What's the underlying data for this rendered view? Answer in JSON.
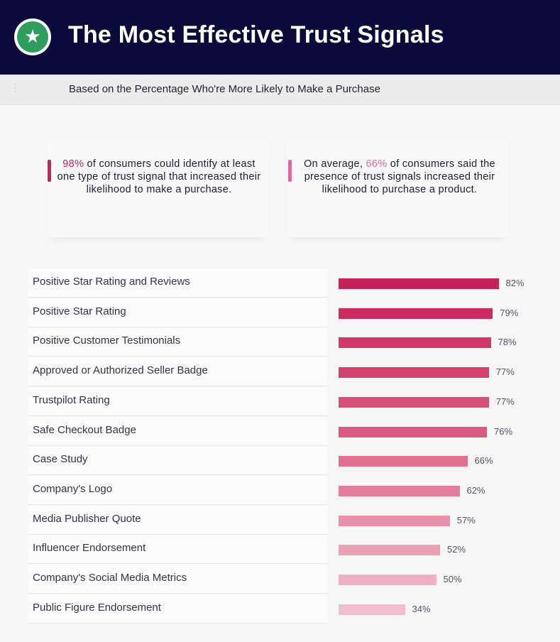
{
  "header": {
    "title": "The Most Effective Trust Signals",
    "icon": "star-icon",
    "icon_glyph": "★",
    "background": "#0b0b3b",
    "badge_color": "#2e9e5e"
  },
  "subtitle": "Based on the Percentage Who're More Likely to Make a Purchase",
  "stats": [
    {
      "highlight": "98%",
      "text": " of consumers could identify at least one type of trust signal that increased their likelihood to make a purchase.",
      "accent_color": "#c8245a"
    },
    {
      "prefix": "On average, ",
      "highlight": "66%",
      "text": " of consumers said the presence of trust signals increased their likelihood to purchase a product.",
      "accent_color": "#e06a98"
    }
  ],
  "chart_data": {
    "type": "bar",
    "orientation": "horizontal",
    "categories": [
      "Positive Star Rating and Reviews",
      "Positive Star Rating",
      "Positive Customer Testimonials",
      "Approved or Authorized Seller Badge",
      "Trustpilot Rating",
      "Safe Checkout Badge",
      "Case Study",
      "Company's Logo",
      "Media Publisher Quote",
      "Influencer Endorsement",
      "Company's Social Media Metrics",
      "Public Figure Endorsement"
    ],
    "values": [
      82,
      79,
      78,
      77,
      77,
      76,
      66,
      62,
      57,
      52,
      50,
      34
    ],
    "value_labels": [
      "82%",
      "79%",
      "78%",
      "77%",
      "77%",
      "76%",
      "66%",
      "62%",
      "57%",
      "52%",
      "50%",
      "34%"
    ],
    "colors": [
      "#c7215a",
      "#cc2b61",
      "#d0376a",
      "#d44270",
      "#d84e7a",
      "#dc5a82",
      "#e0708f",
      "#e47d9b",
      "#e990ab",
      "#eca0b6",
      "#efb0c3",
      "#f2bdce"
    ],
    "unit": "%"
  }
}
